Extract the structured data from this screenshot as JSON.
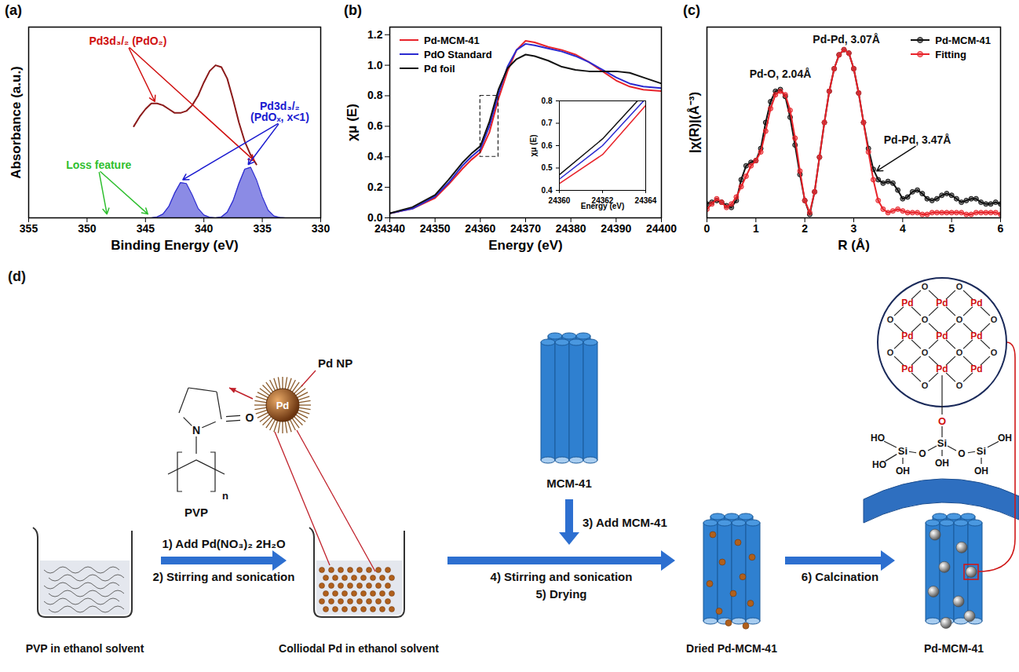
{
  "chart_data": [
    {
      "panel": "(a)",
      "type": "line",
      "xlabel": "Binding Energy (eV)",
      "ylabel": "Absorbance (a.u.)",
      "xlim": [
        355,
        330
      ],
      "xticks": [
        355,
        350,
        345,
        340,
        335,
        330
      ],
      "ylim": [
        0,
        1
      ],
      "tick_labels": "x",
      "series": [
        {
          "type": "line",
          "color": "#8b1a1a",
          "x": [
            346,
            345.5,
            345,
            344.5,
            344,
            343.5,
            343,
            342.5,
            342,
            341.5,
            341,
            340.5,
            340,
            339.5,
            339,
            338.5,
            338,
            337.5,
            337,
            336.5,
            336,
            335.5
          ],
          "values": [
            0.48,
            0.53,
            0.57,
            0.6,
            0.6,
            0.59,
            0.57,
            0.55,
            0.55,
            0.56,
            0.59,
            0.64,
            0.71,
            0.77,
            0.8,
            0.79,
            0.73,
            0.62,
            0.5,
            0.4,
            0.33,
            0.28
          ]
        },
        {
          "type": "area",
          "color": "#2b2bd0",
          "x": [
            345,
            344.5,
            344,
            343.5,
            343,
            342.5,
            342,
            341.5,
            341,
            340.5,
            340,
            339.5,
            339,
            338.5,
            338,
            337.5,
            337,
            336.5,
            336,
            335.5,
            335,
            334.5,
            334,
            333.5,
            333
          ],
          "values": [
            0,
            0,
            0.005,
            0.02,
            0.06,
            0.13,
            0.185,
            0.18,
            0.12,
            0.05,
            0.015,
            0.003,
            0,
            0.005,
            0.03,
            0.09,
            0.18,
            0.255,
            0.265,
            0.2,
            0.11,
            0.04,
            0.01,
            0.002,
            0
          ]
        }
      ],
      "annotations": [
        {
          "text": "Pd3d₃/₂ (PdO₂)",
          "color": "#d01010",
          "x": 346.5,
          "y": 0.9,
          "arrows": [
            [
              344.2,
              0.61
            ],
            [
              335.7,
              0.3
            ]
          ]
        },
        {
          "text": "Pd3d₃/₂ (PdOₓ, x<1)",
          "color": "#1a1ad0",
          "x": 333.5,
          "y": 0.5,
          "arrows": [
            [
              341.8,
              0.2
            ],
            [
              336.2,
              0.28
            ]
          ]
        },
        {
          "text": "Loss feature",
          "color": "#2fbf2f",
          "x": 349,
          "y": 0.25,
          "arrows": [
            [
              348.3,
              0.02
            ],
            [
              344.8,
              0.02
            ]
          ]
        }
      ]
    },
    {
      "panel": "(b)",
      "type": "line",
      "xlabel": "Energy (eV)",
      "ylabel": "χμ (E)",
      "xlim": [
        24340,
        24400
      ],
      "xticks": [
        24340,
        24350,
        24360,
        24370,
        24380,
        24390,
        24400
      ],
      "ylim": [
        0,
        1.25
      ],
      "yticks": [
        {
          "value": 0,
          "label": "0.0"
        },
        0.2,
        0.4,
        0.6,
        0.8,
        {
          "value": 1,
          "label": "1.0"
        },
        1.2
      ],
      "legend": "top-left",
      "x": [
        24340,
        24345,
        24350,
        24353,
        24356,
        24358,
        24360,
        24362,
        24364,
        24366,
        24368,
        24370,
        24372,
        24375,
        24378,
        24381,
        24384,
        24387,
        24390,
        24393,
        24396,
        24400
      ],
      "series": [
        {
          "name": "Pd-MCM-41",
          "color": "#e8232a",
          "values": [
            0.03,
            0.06,
            0.13,
            0.22,
            0.32,
            0.38,
            0.43,
            0.56,
            0.78,
            0.96,
            1.1,
            1.16,
            1.15,
            1.12,
            1.1,
            1.07,
            1.02,
            0.96,
            0.9,
            0.86,
            0.84,
            0.83
          ]
        },
        {
          "name": "PdO Standard",
          "color": "#2a2ad0",
          "values": [
            0.03,
            0.06,
            0.14,
            0.23,
            0.34,
            0.4,
            0.45,
            0.6,
            0.81,
            0.99,
            1.1,
            1.14,
            1.13,
            1.11,
            1.09,
            1.06,
            1.02,
            0.97,
            0.92,
            0.88,
            0.86,
            0.85
          ]
        },
        {
          "name": "Pd foil",
          "color": "#111111",
          "values": [
            0.03,
            0.07,
            0.15,
            0.25,
            0.36,
            0.42,
            0.47,
            0.63,
            0.84,
            0.98,
            1.04,
            1.07,
            1.06,
            1.03,
            0.99,
            0.97,
            0.96,
            0.96,
            0.96,
            0.95,
            0.92,
            0.88
          ]
        }
      ],
      "inset": {
        "xlabel": "Energy (eV)",
        "ylabel": "χμ (E)",
        "xlim": [
          24360,
          24364
        ],
        "xticks": [
          24360,
          24362,
          24364
        ],
        "ylim": [
          0.4,
          0.8
        ],
        "yticks": [
          0.4,
          0.5,
          0.6,
          0.7,
          0.8
        ]
      }
    },
    {
      "panel": "(c)",
      "type": "line",
      "xlabel": "R (Å)",
      "ylabel": "|χ(R)|(Å⁻³)",
      "xlim": [
        0,
        6
      ],
      "xticks": [
        0,
        1,
        2,
        3,
        4,
        5,
        6
      ],
      "ylim": [
        0,
        1.1
      ],
      "tick_labels": "x",
      "legend": "top-right",
      "x": [
        0,
        0.1,
        0.2,
        0.3,
        0.4,
        0.5,
        0.6,
        0.7,
        0.8,
        0.9,
        1,
        1.1,
        1.2,
        1.3,
        1.4,
        1.5,
        1.6,
        1.7,
        1.8,
        1.9,
        2,
        2.1,
        2.2,
        2.3,
        2.4,
        2.5,
        2.6,
        2.7,
        2.8,
        2.9,
        3,
        3.1,
        3.2,
        3.3,
        3.4,
        3.5,
        3.6,
        3.7,
        3.8,
        3.9,
        4,
        4.1,
        4.2,
        4.3,
        4.4,
        4.5,
        4.6,
        4.7,
        4.8,
        4.9,
        5,
        5.1,
        5.2,
        5.3,
        5.4,
        5.5,
        5.6,
        5.7,
        5.8,
        5.9,
        6
      ],
      "series": [
        {
          "name": "Pd-MCM-41",
          "color": "#111111",
          "marker": "circle",
          "values": [
            0.08,
            0.09,
            0.1,
            0.09,
            0.07,
            0.06,
            0.1,
            0.22,
            0.3,
            0.32,
            0.33,
            0.4,
            0.55,
            0.67,
            0.73,
            0.74,
            0.7,
            0.58,
            0.42,
            0.25,
            0.1,
            0.02,
            0.15,
            0.35,
            0.55,
            0.73,
            0.86,
            0.94,
            0.97,
            0.95,
            0.86,
            0.72,
            0.55,
            0.4,
            0.28,
            0.22,
            0.2,
            0.21,
            0.2,
            0.16,
            0.11,
            0.12,
            0.15,
            0.16,
            0.14,
            0.11,
            0.1,
            0.11,
            0.13,
            0.14,
            0.13,
            0.11,
            0.09,
            0.1,
            0.11,
            0.11,
            0.09,
            0.08,
            0.08,
            0.09,
            0.08
          ]
        },
        {
          "name": "Fitting",
          "color": "#e8232a",
          "marker": "circle",
          "values": [
            0.05,
            0.08,
            0.11,
            0.09,
            0.06,
            0.08,
            0.12,
            0.18,
            0.24,
            0.3,
            0.33,
            0.38,
            0.5,
            0.63,
            0.71,
            0.73,
            0.71,
            0.62,
            0.46,
            0.27,
            0.1,
            0.03,
            0.15,
            0.35,
            0.55,
            0.73,
            0.86,
            0.94,
            0.97,
            0.95,
            0.86,
            0.72,
            0.55,
            0.38,
            0.22,
            0.1,
            0.05,
            0.03,
            0.04,
            0.05,
            0.04,
            0.03,
            0.03,
            0.03,
            0.02,
            0.02,
            0.03,
            0.03,
            0.03,
            0.03,
            0.03,
            0.03,
            0.03,
            0.02,
            0.02,
            0.03,
            0.03,
            0.03,
            0.03,
            0.03,
            0.02
          ]
        }
      ],
      "annotations": [
        {
          "text": "Pd-O, 2.04Å",
          "color": "#111111",
          "x": 1.5,
          "y": 0.8,
          "arrows": []
        },
        {
          "text": "Pd-Pd, 3.07Å",
          "color": "#111111",
          "x": 2.85,
          "y": 1.0,
          "arrows": []
        },
        {
          "text": "Pd-Pd, 3.47Å",
          "color": "#111111",
          "x": 4.3,
          "y": 0.42,
          "arrows": [
            [
              3.47,
              0.27
            ]
          ]
        }
      ]
    }
  ],
  "diagram": {
    "panel": "(d)",
    "vessels": [
      "PVP in ethanol solvent",
      "Colliodal Pd in ethanol solvent"
    ],
    "supports": [
      "MCM-41",
      "Dried Pd-MCM-41",
      "Pd-MCM-41"
    ],
    "steps": [
      {
        "lines": [
          "1) Add Pd(NO₃)₂ 2H₂O",
          "2) Stirring and sonication"
        ]
      },
      {
        "lines": [
          "3) Add MCM-41"
        ]
      },
      {
        "lines": [
          "4) Stirring and sonication",
          "5) Drying"
        ]
      },
      {
        "lines": [
          "6) Calcination"
        ]
      }
    ],
    "polymer": {
      "label": "PVP",
      "atoms": [
        "N",
        "O"
      ],
      "repeat": "n"
    },
    "nanoparticle": {
      "label": "Pd NP",
      "core": "Pd"
    },
    "surface_model": {
      "metal": "Pd",
      "oxygen": "O",
      "silicon": "Si",
      "hydroxyls": [
        "HO",
        "HO",
        "OH",
        "OH",
        "OH",
        "OH"
      ]
    }
  }
}
